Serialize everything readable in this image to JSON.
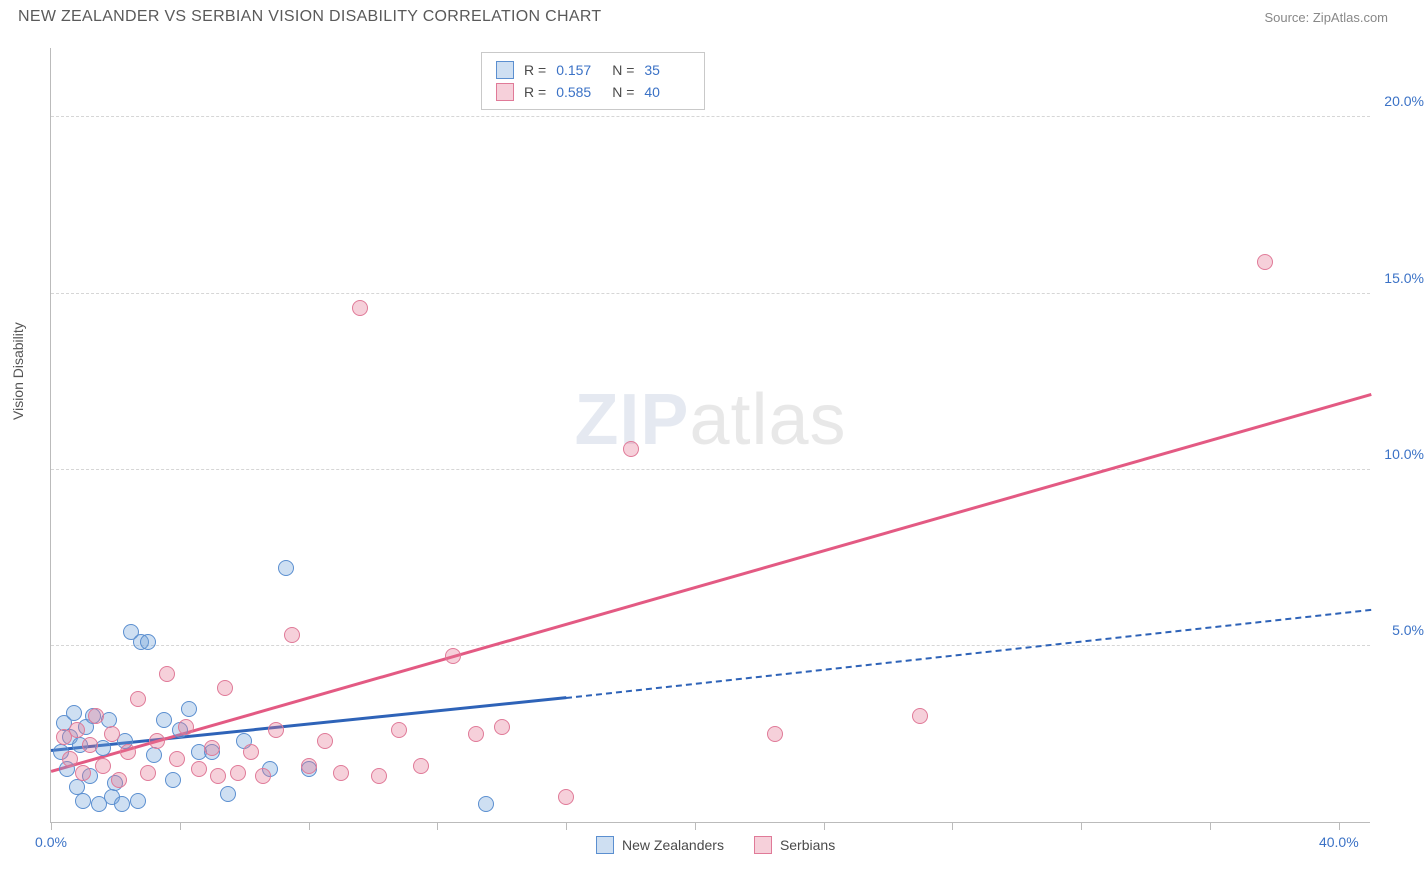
{
  "header": {
    "title": "NEW ZEALANDER VS SERBIAN VISION DISABILITY CORRELATION CHART",
    "source": "Source: ZipAtlas.com"
  },
  "chart": {
    "type": "scatter",
    "ylabel": "Vision Disability",
    "xlim": [
      0,
      41
    ],
    "ylim": [
      0,
      22
    ],
    "background_color": "#ffffff",
    "grid_color": "#d6d6d6",
    "axis_color": "#bbbbbb",
    "label_color": "#3b72c6",
    "text_color": "#555555",
    "title_fontsize": 16,
    "label_fontsize": 14,
    "yticks": [
      {
        "v": 5.0,
        "label": "5.0%"
      },
      {
        "v": 10.0,
        "label": "10.0%"
      },
      {
        "v": 15.0,
        "label": "15.0%"
      },
      {
        "v": 20.0,
        "label": "20.0%"
      }
    ],
    "xticks_major": [
      0,
      4,
      8,
      12,
      16,
      20,
      24,
      28,
      32,
      36,
      40
    ],
    "xtick_labels": [
      {
        "v": 0,
        "label": "0.0%"
      },
      {
        "v": 40,
        "label": "40.0%"
      }
    ],
    "watermark": {
      "zip": "ZIP",
      "atlas": "atlas"
    },
    "series": [
      {
        "name": "New Zealanders",
        "marker_fill": "rgba(116,162,219,0.35)",
        "marker_stroke": "#5b8fd0",
        "marker_size": 16,
        "trend_color": "#2e63b8",
        "trend_solid": {
          "x1": 0,
          "y1": 2.0,
          "x2": 16,
          "y2": 3.5
        },
        "trend_dash": {
          "x1": 16,
          "y1": 3.5,
          "x2": 41,
          "y2": 6.0
        },
        "points": [
          {
            "x": 0.3,
            "y": 2.0
          },
          {
            "x": 0.4,
            "y": 2.8
          },
          {
            "x": 0.5,
            "y": 1.5
          },
          {
            "x": 0.6,
            "y": 2.4
          },
          {
            "x": 0.7,
            "y": 3.1
          },
          {
            "x": 0.8,
            "y": 1.0
          },
          {
            "x": 0.9,
            "y": 2.2
          },
          {
            "x": 1.0,
            "y": 0.6
          },
          {
            "x": 1.1,
            "y": 2.7
          },
          {
            "x": 1.2,
            "y": 1.3
          },
          {
            "x": 1.3,
            "y": 3.0
          },
          {
            "x": 1.5,
            "y": 0.5
          },
          {
            "x": 1.6,
            "y": 2.1
          },
          {
            "x": 1.8,
            "y": 2.9
          },
          {
            "x": 1.9,
            "y": 0.7
          },
          {
            "x": 2.0,
            "y": 1.1
          },
          {
            "x": 2.2,
            "y": 0.5
          },
          {
            "x": 2.3,
            "y": 2.3
          },
          {
            "x": 2.5,
            "y": 5.4
          },
          {
            "x": 2.8,
            "y": 5.1
          },
          {
            "x": 3.0,
            "y": 5.1
          },
          {
            "x": 3.2,
            "y": 1.9
          },
          {
            "x": 3.5,
            "y": 2.9
          },
          {
            "x": 3.8,
            "y": 1.2
          },
          {
            "x": 4.0,
            "y": 2.6
          },
          {
            "x": 4.3,
            "y": 3.2
          },
          {
            "x": 4.6,
            "y": 2.0
          },
          {
            "x": 5.0,
            "y": 2.0
          },
          {
            "x": 5.5,
            "y": 0.8
          },
          {
            "x": 6.0,
            "y": 2.3
          },
          {
            "x": 6.8,
            "y": 1.5
          },
          {
            "x": 7.3,
            "y": 7.2
          },
          {
            "x": 8.0,
            "y": 1.5
          },
          {
            "x": 13.5,
            "y": 0.5
          },
          {
            "x": 2.7,
            "y": 0.6
          }
        ]
      },
      {
        "name": "Serbians",
        "marker_fill": "rgba(229,121,150,0.35)",
        "marker_stroke": "#e07a98",
        "marker_size": 16,
        "trend_color": "#e35a83",
        "trend_solid": {
          "x1": 0,
          "y1": 1.4,
          "x2": 41,
          "y2": 12.1
        },
        "points": [
          {
            "x": 0.4,
            "y": 2.4
          },
          {
            "x": 0.6,
            "y": 1.8
          },
          {
            "x": 0.8,
            "y": 2.6
          },
          {
            "x": 1.0,
            "y": 1.4
          },
          {
            "x": 1.2,
            "y": 2.2
          },
          {
            "x": 1.4,
            "y": 3.0
          },
          {
            "x": 1.6,
            "y": 1.6
          },
          {
            "x": 1.9,
            "y": 2.5
          },
          {
            "x": 2.1,
            "y": 1.2
          },
          {
            "x": 2.4,
            "y": 2.0
          },
          {
            "x": 2.7,
            "y": 3.5
          },
          {
            "x": 3.0,
            "y": 1.4
          },
          {
            "x": 3.3,
            "y": 2.3
          },
          {
            "x": 3.6,
            "y": 4.2
          },
          {
            "x": 3.9,
            "y": 1.8
          },
          {
            "x": 4.2,
            "y": 2.7
          },
          {
            "x": 4.6,
            "y": 1.5
          },
          {
            "x": 5.0,
            "y": 2.1
          },
          {
            "x": 5.4,
            "y": 3.8
          },
          {
            "x": 5.8,
            "y": 1.4
          },
          {
            "x": 6.2,
            "y": 2.0
          },
          {
            "x": 6.6,
            "y": 1.3
          },
          {
            "x": 7.0,
            "y": 2.6
          },
          {
            "x": 7.5,
            "y": 5.3
          },
          {
            "x": 8.0,
            "y": 1.6
          },
          {
            "x": 8.5,
            "y": 2.3
          },
          {
            "x": 9.0,
            "y": 1.4
          },
          {
            "x": 9.6,
            "y": 14.6
          },
          {
            "x": 10.2,
            "y": 1.3
          },
          {
            "x": 10.8,
            "y": 2.6
          },
          {
            "x": 11.5,
            "y": 1.6
          },
          {
            "x": 12.5,
            "y": 4.7
          },
          {
            "x": 13.2,
            "y": 2.5
          },
          {
            "x": 14.0,
            "y": 2.7
          },
          {
            "x": 16.0,
            "y": 0.7
          },
          {
            "x": 18.0,
            "y": 10.6
          },
          {
            "x": 22.5,
            "y": 2.5
          },
          {
            "x": 27.0,
            "y": 3.0
          },
          {
            "x": 37.7,
            "y": 15.9
          },
          {
            "x": 5.2,
            "y": 1.3
          }
        ]
      }
    ],
    "legend_top": [
      {
        "swatch_fill": "rgba(116,162,219,0.35)",
        "swatch_stroke": "#5b8fd0",
        "r_label": "R =",
        "r": "0.157",
        "n_label": "N =",
        "n": "35"
      },
      {
        "swatch_fill": "rgba(229,121,150,0.35)",
        "swatch_stroke": "#e07a98",
        "r_label": "R =",
        "r": "0.585",
        "n_label": "N =",
        "n": "40"
      }
    ],
    "legend_bottom": [
      {
        "swatch_fill": "rgba(116,162,219,0.35)",
        "swatch_stroke": "#5b8fd0",
        "label": "New Zealanders"
      },
      {
        "swatch_fill": "rgba(229,121,150,0.35)",
        "swatch_stroke": "#e07a98",
        "label": "Serbians"
      }
    ]
  }
}
